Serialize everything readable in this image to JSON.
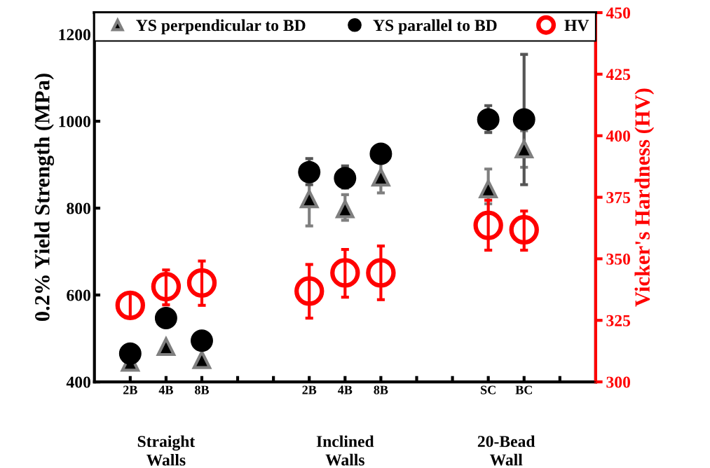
{
  "chart_data": {
    "type": "scatter",
    "categories": [
      "2B",
      "4B",
      "8B",
      null,
      null,
      "2B",
      "4B",
      "8B",
      null,
      null,
      "SC",
      "BC",
      null
    ],
    "ylabel": "0.2% Yield Strength (MPa)",
    "y2label": "Vicker's Hardness (HV)",
    "ylim": [
      400,
      1250
    ],
    "yticks": [
      400,
      600,
      800,
      1000,
      1200
    ],
    "y2lim": [
      300,
      450
    ],
    "y2ticks": [
      300,
      325,
      350,
      375,
      400,
      425,
      450
    ],
    "annotations": [
      "Straight\nWalls",
      "Inclined\nWalls",
      "20-Bead\nWall"
    ],
    "legend": "top",
    "grid": false,
    "series": [
      {
        "name": "YS perpendicular to BD",
        "color": "#7f7f7f",
        "marker": "triangle",
        "values": [
          445,
          481,
          451,
          null,
          null,
          821,
          798,
          871,
          null,
          null,
          844,
          936,
          null
        ],
        "errors": [
          null,
          null,
          null,
          null,
          null,
          62,
          [
            772,
            831
          ],
          36,
          null,
          null,
          [
            810,
            890
          ],
          42,
          null
        ]
      },
      {
        "name": "YS parallel to BD",
        "color": "#000000",
        "marker": "circle",
        "values": [
          465,
          547,
          495,
          null,
          null,
          883,
          869,
          925,
          null,
          null,
          1004,
          1004,
          null
        ],
        "errors": [
          null,
          null,
          null,
          null,
          null,
          [
            854,
            914
          ],
          [
            846,
            897
          ],
          null,
          null,
          null,
          [
            974,
            1036
          ],
          150,
          null
        ]
      },
      {
        "name": "HV",
        "color": "#ff0000",
        "marker": "circle",
        "axis": "y2",
        "values": [
          331.1,
          338.7,
          340.2,
          null,
          null,
          336.9,
          344.3,
          344.3,
          null,
          null,
          363.6,
          361.8,
          null
        ],
        "errors": [
          [
            326,
            336
          ],
          [
            331.3,
            345.5
          ],
          [
            331.1,
            349.1
          ],
          null,
          null,
          [
            325.9,
            347.7
          ],
          [
            334.4,
            353.8
          ],
          [
            333.4,
            355.2
          ],
          null,
          null,
          [
            353.5,
            373.8
          ],
          [
            353.5,
            369.4
          ],
          null
        ]
      }
    ]
  }
}
